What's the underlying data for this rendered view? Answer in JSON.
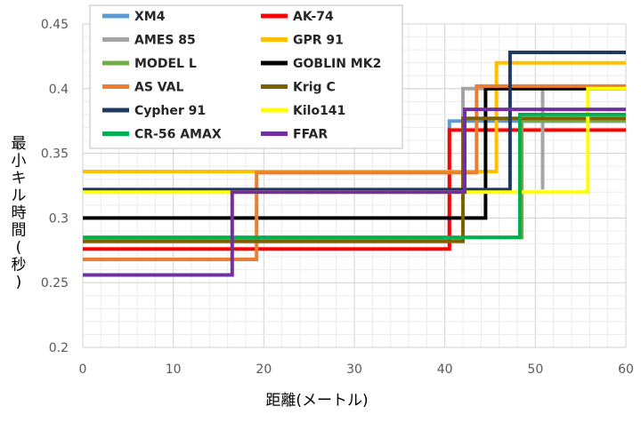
{
  "chart_data": {
    "type": "line",
    "step": true,
    "xlabel": "距離(メートル)",
    "ylabel": "最小キル時間(秒)",
    "xlim": [
      0,
      60
    ],
    "ylim": [
      0.2,
      0.45
    ],
    "x_ticks": [
      "0",
      "10",
      "20",
      "30",
      "40",
      "50",
      "60"
    ],
    "y_ticks": [
      "0.2",
      "0.25",
      "0.3",
      "0.35",
      "0.4",
      "0.45"
    ],
    "grid": true,
    "legend_position": "top-left",
    "series": [
      {
        "name": "XM4",
        "color": "#5b9bd5",
        "points": [
          [
            0,
            0.282
          ],
          [
            40.5,
            0.282
          ],
          [
            40.5,
            0.375
          ],
          [
            60,
            0.375
          ]
        ]
      },
      {
        "name": "AK-74",
        "color": "#ff0000",
        "points": [
          [
            0,
            0.276
          ],
          [
            40.5,
            0.276
          ],
          [
            40.5,
            0.368
          ],
          [
            60,
            0.368
          ]
        ]
      },
      {
        "name": "AMES 85",
        "color": "#a5a5a5",
        "points": [
          [
            0,
            0.282
          ],
          [
            42,
            0.282
          ],
          [
            42,
            0.4
          ],
          [
            50.8,
            0.4
          ],
          [
            50.8,
            0.322
          ],
          [
            50.8,
            0.4
          ],
          [
            60,
            0.4
          ]
        ]
      },
      {
        "name": "GPR 91",
        "color": "#ffc000",
        "points": [
          [
            0,
            0.336
          ],
          [
            45.7,
            0.336
          ],
          [
            45.7,
            0.42
          ],
          [
            60,
            0.42
          ]
        ]
      },
      {
        "name": "MODEL L",
        "color": "#70ad47",
        "points": [
          [
            0,
            0.285
          ],
          [
            48.5,
            0.285
          ],
          [
            48.5,
            0.375
          ],
          [
            60,
            0.375
          ]
        ]
      },
      {
        "name": "GOBLIN MK2",
        "color": "#000000",
        "points": [
          [
            0,
            0.3
          ],
          [
            44.5,
            0.3
          ],
          [
            44.5,
            0.4
          ],
          [
            60,
            0.4
          ]
        ]
      },
      {
        "name": "AS VAL",
        "color": "#ed7d31",
        "points": [
          [
            0,
            0.268
          ],
          [
            19.2,
            0.268
          ],
          [
            19.2,
            0.335
          ],
          [
            43.5,
            0.335
          ],
          [
            43.5,
            0.402
          ],
          [
            60,
            0.402
          ]
        ]
      },
      {
        "name": "Krig C",
        "color": "#7f6000",
        "points": [
          [
            0,
            0.282
          ],
          [
            42,
            0.282
          ],
          [
            42,
            0.377
          ],
          [
            60,
            0.377
          ]
        ]
      },
      {
        "name": "Cypher 91",
        "color": "#203864",
        "points": [
          [
            0,
            0.322
          ],
          [
            47.2,
            0.322
          ],
          [
            47.2,
            0.428
          ],
          [
            60,
            0.428
          ]
        ]
      },
      {
        "name": "Kilo141",
        "color": "#ffff00",
        "points": [
          [
            0,
            0.32
          ],
          [
            55.8,
            0.32
          ],
          [
            55.8,
            0.4
          ],
          [
            60,
            0.4
          ]
        ]
      },
      {
        "name": "CR-56 AMAX",
        "color": "#00b050",
        "points": [
          [
            0,
            0.285
          ],
          [
            48.3,
            0.285
          ],
          [
            48.3,
            0.38
          ],
          [
            60,
            0.38
          ]
        ]
      },
      {
        "name": "FFAR",
        "color": "#7030a0",
        "points": [
          [
            0,
            0.256
          ],
          [
            16.5,
            0.256
          ],
          [
            16.5,
            0.32
          ],
          [
            42.2,
            0.32
          ],
          [
            42.2,
            0.384
          ],
          [
            60,
            0.384
          ]
        ]
      }
    ]
  }
}
